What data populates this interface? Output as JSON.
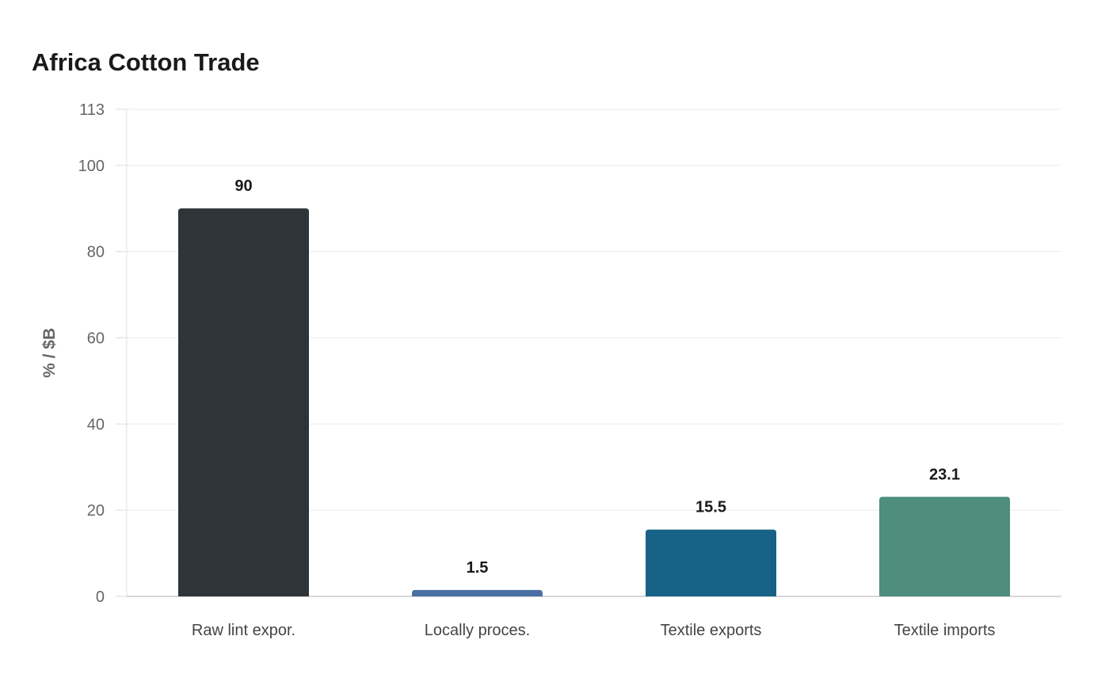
{
  "chart_data": {
    "type": "bar",
    "title": "Africa Cotton Trade",
    "xlabel": "",
    "ylabel": "% / $B",
    "categories": [
      "Raw lint expor.",
      "Locally proces.",
      "Textile exports",
      "Textile imports"
    ],
    "values": [
      90,
      1.5,
      15.5,
      23.1
    ],
    "value_labels": [
      "90",
      "1.5",
      "15.5",
      "23.1"
    ],
    "colors": [
      "#2e3538",
      "#4a6fa5",
      "#186287",
      "#4f8d7d"
    ],
    "ylim": [
      0,
      113
    ],
    "yticks": [
      0,
      20,
      40,
      60,
      80,
      100,
      113
    ],
    "grid": true,
    "legend": "none"
  }
}
